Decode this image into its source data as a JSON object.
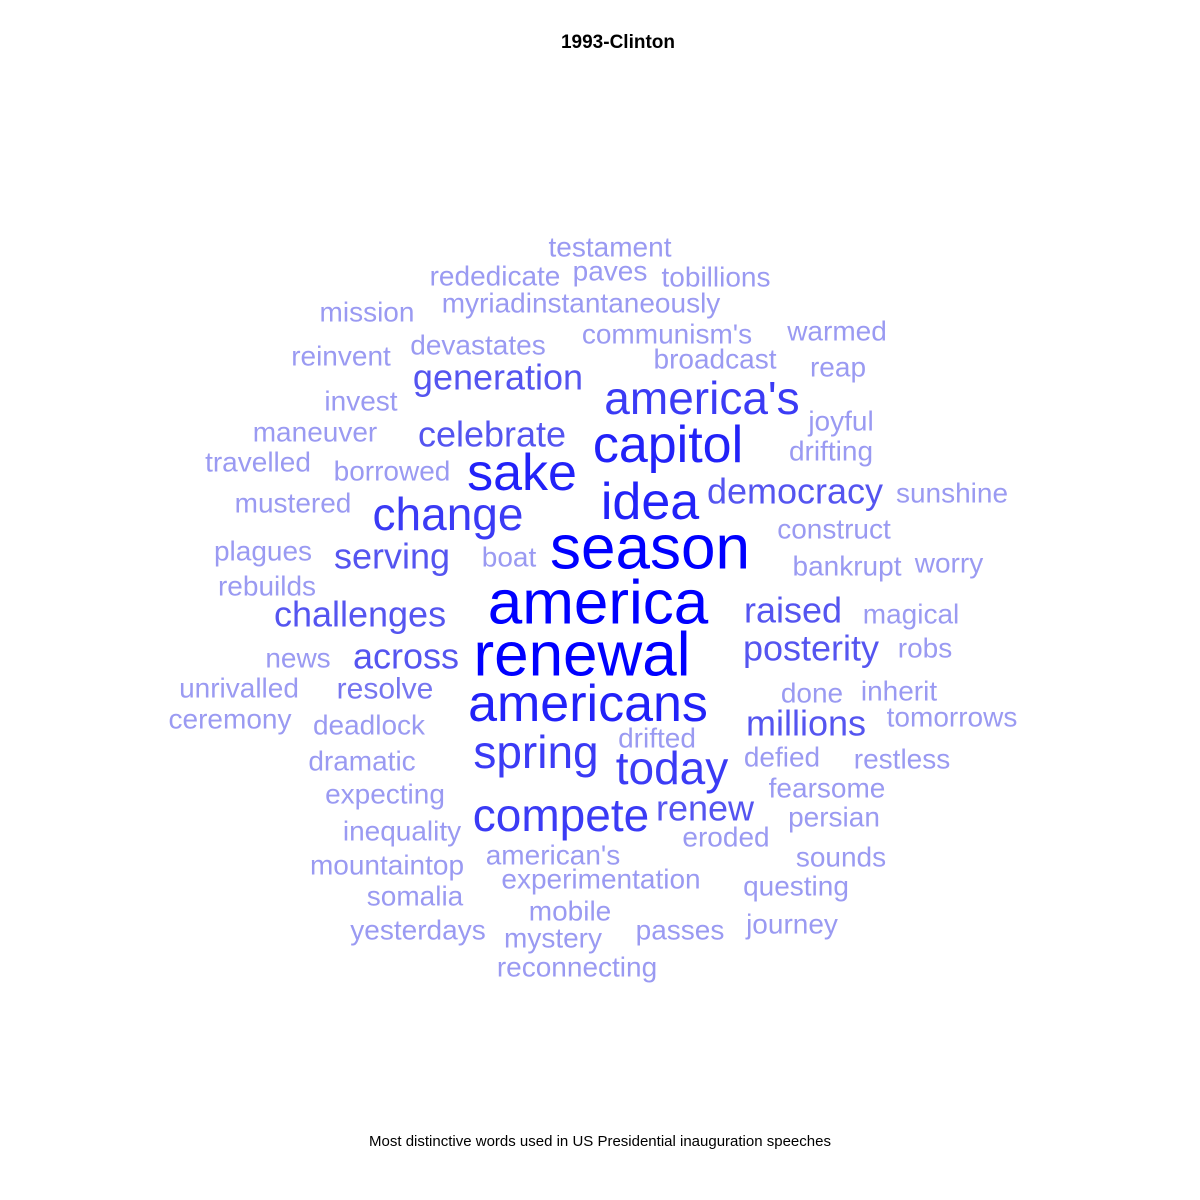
{
  "chart_data": {
    "type": "wordcloud",
    "title": "1993-Clinton",
    "caption": "Most distinctive words used in US Presidential inauguration speeches",
    "colors": {
      "high": "#0000ff",
      "mid": "#5555f0",
      "low": "#9a9af2"
    },
    "words": [
      {
        "text": "season",
        "weight": 1.0
      },
      {
        "text": "america",
        "weight": 1.0
      },
      {
        "text": "renewal",
        "weight": 1.0
      },
      {
        "text": "americans",
        "weight": 0.92
      },
      {
        "text": "idea",
        "weight": 0.85
      },
      {
        "text": "capitol",
        "weight": 0.82
      },
      {
        "text": "sake",
        "weight": 0.8
      },
      {
        "text": "change",
        "weight": 0.78
      },
      {
        "text": "today",
        "weight": 0.75
      },
      {
        "text": "spring",
        "weight": 0.75
      },
      {
        "text": "compete",
        "weight": 0.72
      },
      {
        "text": "america's",
        "weight": 0.7
      },
      {
        "text": "posterity",
        "weight": 0.65
      },
      {
        "text": "raised",
        "weight": 0.62
      },
      {
        "text": "challenges",
        "weight": 0.6
      },
      {
        "text": "serving",
        "weight": 0.6
      },
      {
        "text": "celebrate",
        "weight": 0.58
      },
      {
        "text": "across",
        "weight": 0.55
      },
      {
        "text": "millions",
        "weight": 0.55
      },
      {
        "text": "generation",
        "weight": 0.52
      },
      {
        "text": "democracy",
        "weight": 0.52
      },
      {
        "text": "renew",
        "weight": 0.5
      },
      {
        "text": "resolve",
        "weight": 0.4
      },
      {
        "text": "testament",
        "weight": 0.3
      },
      {
        "text": "rededicate",
        "weight": 0.3
      },
      {
        "text": "paves",
        "weight": 0.3
      },
      {
        "text": "tobillions",
        "weight": 0.3
      },
      {
        "text": "myriadinstantaneously",
        "weight": 0.3
      },
      {
        "text": "mission",
        "weight": 0.3
      },
      {
        "text": "communism's",
        "weight": 0.3
      },
      {
        "text": "warmed",
        "weight": 0.3
      },
      {
        "text": "devastates",
        "weight": 0.3
      },
      {
        "text": "reinvent",
        "weight": 0.3
      },
      {
        "text": "broadcast",
        "weight": 0.3
      },
      {
        "text": "reap",
        "weight": 0.3
      },
      {
        "text": "invest",
        "weight": 0.3
      },
      {
        "text": "joyful",
        "weight": 0.3
      },
      {
        "text": "maneuver",
        "weight": 0.3
      },
      {
        "text": "drifting",
        "weight": 0.3
      },
      {
        "text": "travelled",
        "weight": 0.3
      },
      {
        "text": "borrowed",
        "weight": 0.3
      },
      {
        "text": "sunshine",
        "weight": 0.3
      },
      {
        "text": "mustered",
        "weight": 0.3
      },
      {
        "text": "construct",
        "weight": 0.3
      },
      {
        "text": "plagues",
        "weight": 0.3
      },
      {
        "text": "boat",
        "weight": 0.3
      },
      {
        "text": "bankrupt",
        "weight": 0.3
      },
      {
        "text": "worry",
        "weight": 0.3
      },
      {
        "text": "rebuilds",
        "weight": 0.3
      },
      {
        "text": "magical",
        "weight": 0.3
      },
      {
        "text": "robs",
        "weight": 0.3
      },
      {
        "text": "news",
        "weight": 0.3
      },
      {
        "text": "unrivalled",
        "weight": 0.3
      },
      {
        "text": "done",
        "weight": 0.3
      },
      {
        "text": "inherit",
        "weight": 0.3
      },
      {
        "text": "ceremony",
        "weight": 0.3
      },
      {
        "text": "deadlock",
        "weight": 0.3
      },
      {
        "text": "tomorrows",
        "weight": 0.3
      },
      {
        "text": "drifted",
        "weight": 0.3
      },
      {
        "text": "dramatic",
        "weight": 0.3
      },
      {
        "text": "defied",
        "weight": 0.3
      },
      {
        "text": "restless",
        "weight": 0.3
      },
      {
        "text": "expecting",
        "weight": 0.3
      },
      {
        "text": "fearsome",
        "weight": 0.3
      },
      {
        "text": "inequality",
        "weight": 0.3
      },
      {
        "text": "persian",
        "weight": 0.3
      },
      {
        "text": "eroded",
        "weight": 0.3
      },
      {
        "text": "mountaintop",
        "weight": 0.3
      },
      {
        "text": "american's",
        "weight": 0.3
      },
      {
        "text": "sounds",
        "weight": 0.3
      },
      {
        "text": "experimentation",
        "weight": 0.3
      },
      {
        "text": "somalia",
        "weight": 0.3
      },
      {
        "text": "questing",
        "weight": 0.3
      },
      {
        "text": "mobile",
        "weight": 0.3
      },
      {
        "text": "yesterdays",
        "weight": 0.3
      },
      {
        "text": "mystery",
        "weight": 0.3
      },
      {
        "text": "passes",
        "weight": 0.3
      },
      {
        "text": "journey",
        "weight": 0.3
      },
      {
        "text": "reconnecting",
        "weight": 0.3
      }
    ]
  }
}
